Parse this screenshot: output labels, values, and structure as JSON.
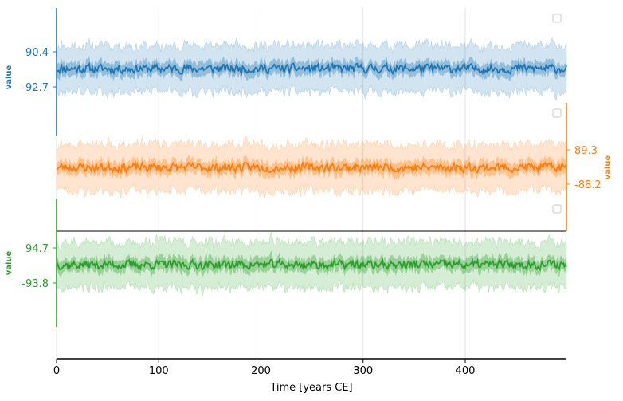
{
  "chart_data": {
    "type": "area",
    "xlabel": "Time [years CE]",
    "xlim": [
      0,
      499
    ],
    "x_ticks": [
      "0",
      "100",
      "200",
      "300",
      "400"
    ],
    "x_tick_values": [
      0,
      100,
      200,
      300,
      400
    ],
    "grid": "vertical lines at x ticks",
    "n_points": 500,
    "colors": {
      "series1": "#1f77b4",
      "series2": "#ff7f0e",
      "series3": "#2ca02c"
    },
    "series": [
      {
        "ylabel": "value",
        "axis_side": "left",
        "yticks": [
          "90.4",
          "-92.7"
        ],
        "median": 0,
        "inner_halfwidth": 20,
        "outer_halfwidth": 65,
        "noise": 18,
        "seed": 11
      },
      {
        "ylabel": "value",
        "axis_side": "right",
        "yticks": [
          "89.3",
          "-88.2"
        ],
        "median": 0,
        "inner_halfwidth": 20,
        "outer_halfwidth": 65,
        "noise": 18,
        "seed": 23
      },
      {
        "ylabel": "value",
        "axis_side": "left",
        "yticks": [
          "94.7",
          "-93.8"
        ],
        "median": 0,
        "inner_halfwidth": 20,
        "outer_halfwidth": 65,
        "noise": 18,
        "seed": 37
      }
    ]
  }
}
